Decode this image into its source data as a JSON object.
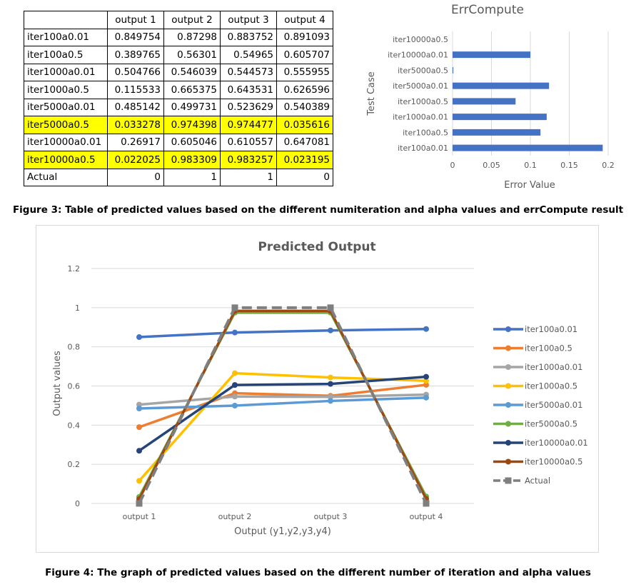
{
  "figure3_caption": "Figure 3:  Table of predicted values based on the different numiteration and alpha values and errCompute result",
  "figure4_caption": "Figure 4: The graph of predicted values based on the different number of iteration and alpha values",
  "table": {
    "headers": [
      "",
      "output 1",
      "output 2",
      "output 3",
      "output 4"
    ],
    "rows": [
      {
        "label": "iter100a0.01",
        "values": [
          "0.849754",
          "0.87298",
          "0.883752",
          "0.891093"
        ],
        "highlight": false
      },
      {
        "label": "iter100a0.5",
        "values": [
          "0.389765",
          "0.56301",
          "0.54965",
          "0.605707"
        ],
        "highlight": false
      },
      {
        "label": "iter1000a0.01",
        "values": [
          "0.504766",
          "0.546039",
          "0.544573",
          "0.555955"
        ],
        "highlight": false
      },
      {
        "label": "iter1000a0.5",
        "values": [
          "0.115533",
          "0.665375",
          "0.643531",
          "0.626596"
        ],
        "highlight": false
      },
      {
        "label": "iter5000a0.01",
        "values": [
          "0.485142",
          "0.499731",
          "0.523629",
          "0.540389"
        ],
        "highlight": false
      },
      {
        "label": "iter5000a0.5",
        "values": [
          "0.033278",
          "0.974398",
          "0.974477",
          "0.035616"
        ],
        "highlight": true
      },
      {
        "label": "iter10000a0.01",
        "values": [
          "0.26917",
          "0.605046",
          "0.610557",
          "0.647081"
        ],
        "highlight": false
      },
      {
        "label": "iter10000a0.5",
        "values": [
          "0.022025",
          "0.983309",
          "0.983257",
          "0.023195"
        ],
        "highlight": true
      },
      {
        "label": "Actual",
        "values": [
          "0",
          "1",
          "1",
          "0"
        ],
        "highlight": false
      }
    ]
  },
  "chart_data": [
    {
      "type": "bar",
      "orientation": "horizontal",
      "title": "ErrCompute",
      "xlabel": "Error Value",
      "ylabel": "Test Case",
      "categories": [
        "iter10000a0.5",
        "iter10000a0.01",
        "iter5000a0.5",
        "iter5000a0.01",
        "iter1000a0.5",
        "iter1000a0.01",
        "iter100a0.5",
        "iter100a0.01"
      ],
      "values": [
        0.0,
        0.1,
        0.001,
        0.124,
        0.081,
        0.121,
        0.113,
        0.193
      ],
      "xlim": [
        0,
        0.2
      ],
      "xticks": [
        "0",
        "0.05",
        "0.1",
        "0.15",
        "0.2"
      ],
      "color": "#4472c4",
      "grid": true
    },
    {
      "type": "line",
      "title": "Predicted Output",
      "xlabel": "Output (y1,y2,y3,y4)",
      "ylabel": "Output values",
      "categories": [
        "output 1",
        "output 2",
        "output 3",
        "output 4"
      ],
      "ylim": [
        0,
        1.2
      ],
      "yticks": [
        "0",
        "0.2",
        "0.4",
        "0.6",
        "0.8",
        "1",
        "1.2"
      ],
      "legend": "right",
      "grid": true,
      "series": [
        {
          "name": "iter100a0.01",
          "values": [
            0.849754,
            0.87298,
            0.883752,
            0.891093
          ],
          "color": "#4472c4"
        },
        {
          "name": "iter100a0.5",
          "values": [
            0.389765,
            0.56301,
            0.54965,
            0.605707
          ],
          "color": "#ed7d31"
        },
        {
          "name": "iter1000a0.01",
          "values": [
            0.504766,
            0.546039,
            0.544573,
            0.555955
          ],
          "color": "#a5a5a5"
        },
        {
          "name": "iter1000a0.5",
          "values": [
            0.115533,
            0.665375,
            0.643531,
            0.626596
          ],
          "color": "#ffc000"
        },
        {
          "name": "iter5000a0.01",
          "values": [
            0.485142,
            0.499731,
            0.523629,
            0.540389
          ],
          "color": "#5b9bd5"
        },
        {
          "name": "iter5000a0.5",
          "values": [
            0.033278,
            0.974398,
            0.974477,
            0.035616
          ],
          "color": "#70ad47"
        },
        {
          "name": "iter10000a0.01",
          "values": [
            0.26917,
            0.605046,
            0.610557,
            0.647081
          ],
          "color": "#264478"
        },
        {
          "name": "iter10000a0.5",
          "values": [
            0.022025,
            0.983309,
            0.983257,
            0.023195
          ],
          "color": "#9e480e"
        },
        {
          "name": "Actual",
          "values": [
            0,
            1,
            1,
            0
          ],
          "color": "#7f7f7f",
          "dashed": true,
          "marker": "square"
        }
      ]
    }
  ]
}
